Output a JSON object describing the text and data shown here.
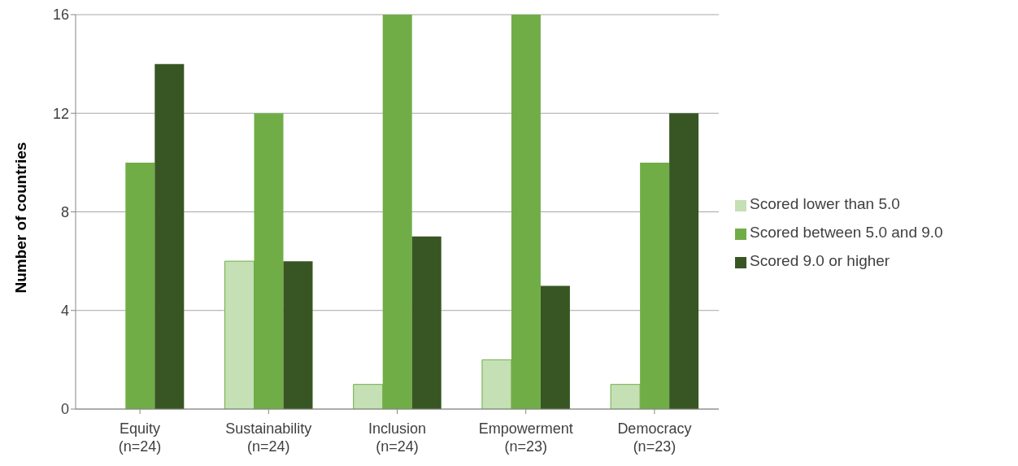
{
  "chart_data": {
    "type": "bar",
    "ylabel": "Number of countries",
    "categories": [
      "Equity\n(n=24)",
      "Sustainability\n(n=24)",
      "Inclusion\n(n=24)",
      "Empowerment\n(n=23)",
      "Democracy\n(n=23)"
    ],
    "series": [
      {
        "name": "Scored lower than 5.0",
        "color": "#c5e0b4",
        "values": [
          0,
          6,
          1,
          2,
          1
        ]
      },
      {
        "name": "Scored between 5.0 and 9.0",
        "color": "#70ad47",
        "values": [
          10,
          12,
          16,
          16,
          10
        ]
      },
      {
        "name": "Scored 9.0 or higher",
        "color": "#375623",
        "values": [
          14,
          6,
          7,
          5,
          12
        ]
      }
    ],
    "ylim": [
      0,
      16
    ],
    "yticks": [
      0,
      4,
      8,
      12,
      16
    ],
    "grid": "y",
    "legend": "right"
  }
}
